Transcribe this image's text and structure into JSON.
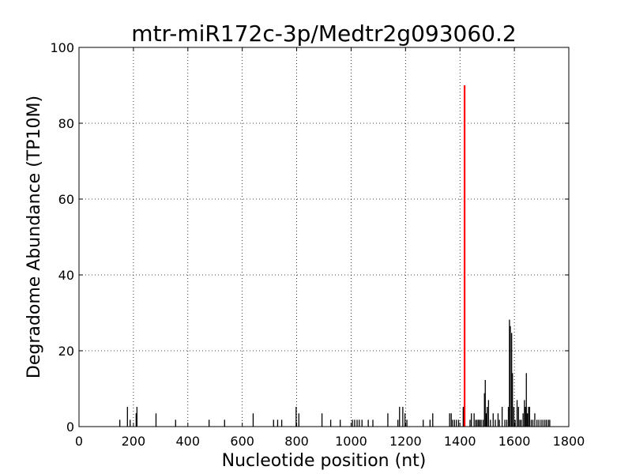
{
  "chart_data": {
    "type": "bar",
    "title": "mtr-miR172c-3p/Medtr2g093060.2",
    "xlabel": "Nucleotide position (nt)",
    "ylabel": "Degradome Abundance (TP10M)",
    "xlim": [
      0,
      1800
    ],
    "ylim": [
      0,
      100
    ],
    "grid": true,
    "x_ticks": [
      "0",
      "200",
      "400",
      "600",
      "800",
      "1000",
      "1200",
      "1400",
      "1600",
      "1800"
    ],
    "y_ticks": [
      "0",
      "20",
      "40",
      "60",
      "80",
      "100"
    ],
    "colors": {
      "background": "#ffffff",
      "bars": "#000000",
      "highlight": "#ff0000",
      "grid": "#000000"
    },
    "series": [
      {
        "values": [
          {
            "x": 150,
            "y": 1.8
          },
          {
            "x": 178,
            "y": 5.2
          },
          {
            "x": 188,
            "y": 1.8
          },
          {
            "x": 210,
            "y": 3.5
          },
          {
            "x": 213,
            "y": 5.2
          },
          {
            "x": 283,
            "y": 3.5
          },
          {
            "x": 355,
            "y": 1.8
          },
          {
            "x": 478,
            "y": 1.8
          },
          {
            "x": 535,
            "y": 1.8
          },
          {
            "x": 640,
            "y": 3.5
          },
          {
            "x": 715,
            "y": 1.8
          },
          {
            "x": 730,
            "y": 1.8
          },
          {
            "x": 745,
            "y": 1.8
          },
          {
            "x": 798,
            "y": 5.2
          },
          {
            "x": 808,
            "y": 3.5
          },
          {
            "x": 893,
            "y": 3.5
          },
          {
            "x": 925,
            "y": 1.8
          },
          {
            "x": 960,
            "y": 1.8
          },
          {
            "x": 1005,
            "y": 1.8
          },
          {
            "x": 1013,
            "y": 1.8
          },
          {
            "x": 1022,
            "y": 1.8
          },
          {
            "x": 1030,
            "y": 1.8
          },
          {
            "x": 1040,
            "y": 1.8
          },
          {
            "x": 1063,
            "y": 1.8
          },
          {
            "x": 1080,
            "y": 1.8
          },
          {
            "x": 1135,
            "y": 3.5
          },
          {
            "x": 1172,
            "y": 1.8
          },
          {
            "x": 1178,
            "y": 5.2
          },
          {
            "x": 1190,
            "y": 5.2
          },
          {
            "x": 1198,
            "y": 3.5
          },
          {
            "x": 1205,
            "y": 1.8
          },
          {
            "x": 1265,
            "y": 1.8
          },
          {
            "x": 1290,
            "y": 1.8
          },
          {
            "x": 1300,
            "y": 3.5
          },
          {
            "x": 1362,
            "y": 3.5
          },
          {
            "x": 1368,
            "y": 3.5
          },
          {
            "x": 1373,
            "y": 1.8
          },
          {
            "x": 1380,
            "y": 1.8
          },
          {
            "x": 1387,
            "y": 1.8
          },
          {
            "x": 1395,
            "y": 1.8
          },
          {
            "x": 1412,
            "y": 5.2
          },
          {
            "x": 1437,
            "y": 1.8
          },
          {
            "x": 1442,
            "y": 3.5
          },
          {
            "x": 1452,
            "y": 3.5
          },
          {
            "x": 1458,
            "y": 1.8
          },
          {
            "x": 1463,
            "y": 1.8
          },
          {
            "x": 1468,
            "y": 1.8
          },
          {
            "x": 1473,
            "y": 1.8
          },
          {
            "x": 1478,
            "y": 1.8
          },
          {
            "x": 1485,
            "y": 1.8
          },
          {
            "x": 1490,
            "y": 8.8
          },
          {
            "x": 1493,
            "y": 12.3
          },
          {
            "x": 1497,
            "y": 3.5
          },
          {
            "x": 1500,
            "y": 5.2
          },
          {
            "x": 1505,
            "y": 7.0
          },
          {
            "x": 1512,
            "y": 1.8
          },
          {
            "x": 1522,
            "y": 3.5
          },
          {
            "x": 1530,
            "y": 1.8
          },
          {
            "x": 1540,
            "y": 3.5
          },
          {
            "x": 1545,
            "y": 1.8
          },
          {
            "x": 1555,
            "y": 5.2
          },
          {
            "x": 1565,
            "y": 1.8
          },
          {
            "x": 1572,
            "y": 1.8
          },
          {
            "x": 1578,
            "y": 5.2
          },
          {
            "x": 1582,
            "y": 28.2
          },
          {
            "x": 1585,
            "y": 26.5
          },
          {
            "x": 1590,
            "y": 24.7
          },
          {
            "x": 1593,
            "y": 14.1
          },
          {
            "x": 1598,
            "y": 5.2
          },
          {
            "x": 1603,
            "y": 1.8
          },
          {
            "x": 1610,
            "y": 7.0
          },
          {
            "x": 1615,
            "y": 5.2
          },
          {
            "x": 1620,
            "y": 1.8
          },
          {
            "x": 1625,
            "y": 1.8
          },
          {
            "x": 1632,
            "y": 3.5
          },
          {
            "x": 1637,
            "y": 7.0
          },
          {
            "x": 1641,
            "y": 5.2
          },
          {
            "x": 1644,
            "y": 14.1
          },
          {
            "x": 1648,
            "y": 3.5
          },
          {
            "x": 1652,
            "y": 5.2
          },
          {
            "x": 1656,
            "y": 5.2
          },
          {
            "x": 1662,
            "y": 1.8
          },
          {
            "x": 1668,
            "y": 1.8
          },
          {
            "x": 1675,
            "y": 3.5
          },
          {
            "x": 1683,
            "y": 1.8
          },
          {
            "x": 1690,
            "y": 1.8
          },
          {
            "x": 1698,
            "y": 1.8
          },
          {
            "x": 1705,
            "y": 1.8
          },
          {
            "x": 1712,
            "y": 1.8
          },
          {
            "x": 1718,
            "y": 1.8
          },
          {
            "x": 1725,
            "y": 1.8
          },
          {
            "x": 1730,
            "y": 1.8
          }
        ]
      }
    ],
    "highlight": {
      "x": 1417,
      "y": 90.0
    }
  }
}
